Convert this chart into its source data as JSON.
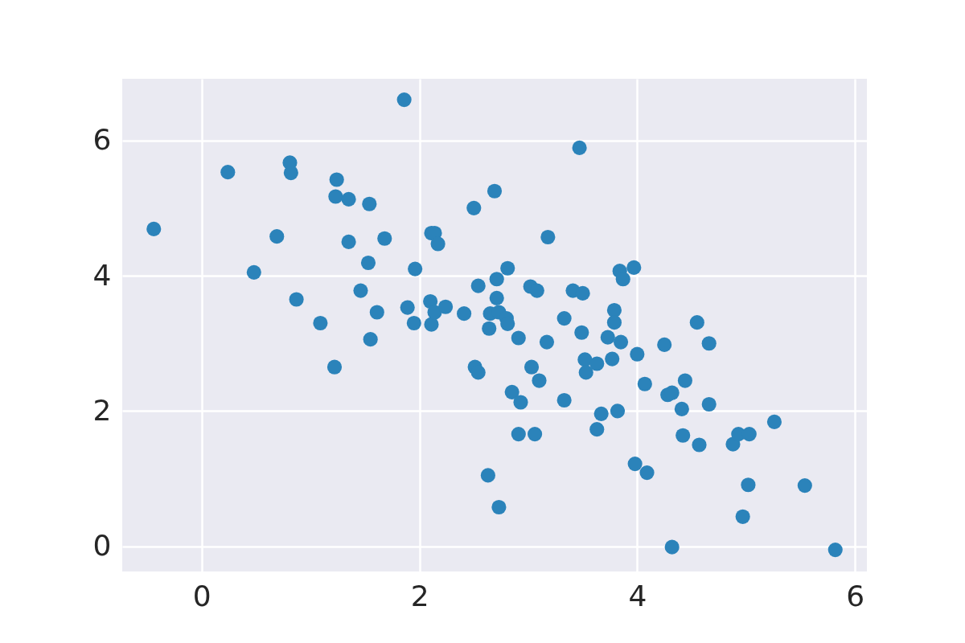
{
  "chart_data": {
    "type": "scatter",
    "marker": "circle",
    "grid": true,
    "xlim": [
      -0.73,
      6.11
    ],
    "ylim": [
      -0.37,
      6.91
    ],
    "xticks": [
      0,
      2,
      4,
      6
    ],
    "yticks": [
      0,
      2,
      4,
      6
    ],
    "series": [
      {
        "color": "#2b83ba",
        "x": [
          -0.44,
          0.24,
          0.48,
          0.69,
          0.81,
          0.82,
          0.87,
          1.09,
          1.22,
          1.23,
          1.24,
          1.35,
          1.35,
          1.46,
          1.53,
          1.54,
          1.55,
          1.61,
          1.68,
          1.86,
          1.89,
          1.95,
          1.96,
          2.1,
          2.11,
          2.11,
          2.14,
          2.14,
          2.17,
          2.24,
          2.41,
          2.5,
          2.51,
          2.54,
          2.54,
          2.63,
          2.64,
          2.65,
          2.69,
          2.71,
          2.71,
          2.73,
          2.73,
          2.8,
          2.81,
          2.81,
          2.85,
          2.91,
          2.91,
          2.93,
          3.02,
          3.03,
          3.06,
          3.08,
          3.1,
          3.17,
          3.18,
          3.33,
          3.33,
          3.41,
          3.47,
          3.49,
          3.5,
          3.52,
          3.53,
          3.63,
          3.63,
          3.67,
          3.73,
          3.77,
          3.79,
          3.79,
          3.82,
          3.84,
          3.85,
          3.87,
          3.97,
          3.98,
          4.0,
          4.07,
          4.09,
          4.25,
          4.28,
          4.32,
          4.32,
          4.41,
          4.42,
          4.44,
          4.55,
          4.57,
          4.66,
          4.66,
          4.88,
          4.93,
          4.97,
          5.02,
          5.03,
          5.26,
          5.54,
          5.82
        ],
        "values": [
          4.69,
          5.53,
          4.05,
          4.58,
          5.67,
          5.52,
          3.65,
          3.3,
          2.65,
          5.17,
          5.42,
          5.13,
          4.5,
          3.78,
          4.19,
          5.06,
          3.06,
          3.46,
          4.55,
          6.6,
          3.53,
          3.3,
          4.1,
          3.62,
          3.28,
          4.63,
          4.63,
          3.46,
          4.47,
          3.54,
          3.44,
          5.0,
          2.65,
          3.85,
          2.57,
          1.05,
          3.22,
          3.44,
          5.25,
          3.95,
          3.67,
          0.58,
          3.46,
          3.37,
          4.11,
          3.29,
          2.28,
          3.08,
          1.66,
          2.13,
          3.84,
          2.65,
          1.66,
          3.78,
          2.45,
          3.02,
          4.57,
          3.37,
          2.16,
          3.78,
          5.89,
          3.16,
          3.74,
          2.76,
          2.57,
          2.7,
          1.73,
          1.96,
          3.09,
          2.77,
          3.49,
          3.31,
          2.0,
          4.07,
          3.02,
          3.95,
          4.12,
          1.22,
          2.84,
          2.4,
          1.09,
          2.98,
          2.24,
          2.27,
          -0.01,
          2.03,
          1.64,
          2.45,
          3.31,
          1.5,
          3.0,
          2.1,
          1.51,
          1.66,
          0.44,
          0.91,
          1.66,
          1.84,
          0.9,
          -0.05
        ]
      }
    ]
  }
}
